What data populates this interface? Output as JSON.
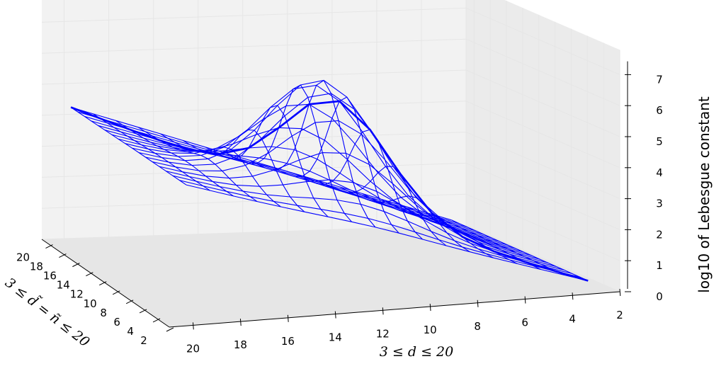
{
  "chart_data": {
    "type": "3d-wireframe",
    "title": "",
    "xlabel": "3 ≤ d ≤ 20",
    "ylabel": "3 ≤ d̃ = ñ ≤ 20",
    "zlabel": "log10 of Lebesgue constant",
    "x_ticks": [
      2,
      4,
      6,
      8,
      10,
      12,
      14,
      16,
      18,
      20
    ],
    "y_ticks": [
      2,
      4,
      6,
      8,
      10,
      12,
      14,
      16,
      18,
      20
    ],
    "z_ticks": [
      0,
      1,
      2,
      3,
      4,
      5,
      6,
      7
    ],
    "xlim": [
      2,
      21
    ],
    "ylim": [
      2,
      21
    ],
    "zlim": [
      0,
      7
    ],
    "d_values": [
      3,
      4,
      5,
      6,
      7,
      8,
      9,
      10,
      11,
      12,
      13,
      14,
      15,
      16,
      17,
      18,
      19,
      20
    ],
    "dtilde_values": [
      3,
      4,
      5,
      6,
      7,
      8,
      9,
      10,
      11,
      12,
      13,
      14,
      15,
      16,
      17,
      18,
      19,
      20
    ],
    "surface_description": "z(d, d~) ≈ 0.28·d plus a ridge rising up to about 6.8 for d~ between 5 and 15 and d between 9 and 16; the highlighted diagonal d~ = d is drawn as a thicker line from z≈0.8 to z≈5.3",
    "diagonal": {
      "from": [
        3,
        3
      ],
      "to": [
        20,
        20
      ]
    },
    "grid": true,
    "colors": {
      "wire": "#0000ff",
      "pane": "#f2f2f2"
    }
  }
}
